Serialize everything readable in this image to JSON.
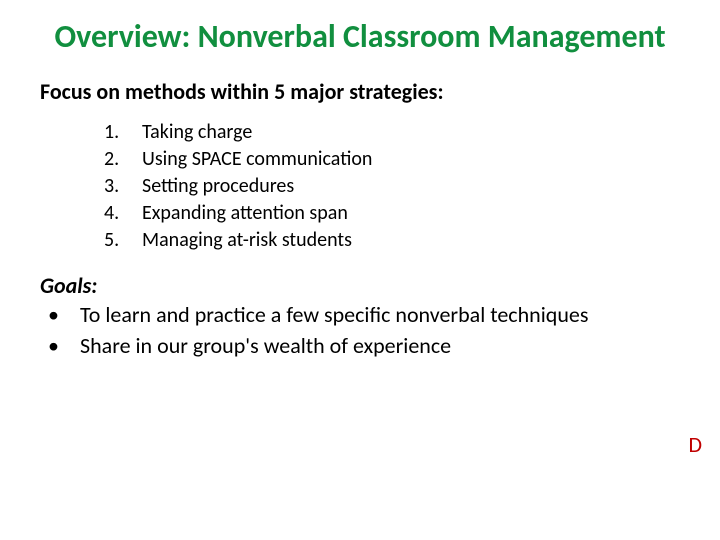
{
  "colors": {
    "title": "#118f3f",
    "body": "#000000",
    "annotation": "#c00000",
    "background": "#ffffff"
  },
  "typography": {
    "title_fontsize": 32,
    "subheading_fontsize": 22,
    "list_fontsize": 20,
    "bullet_fontsize": 22,
    "title_weight": 700,
    "subheading_weight": 700
  },
  "title": "Overview: Nonverbal Classroom Management",
  "subheading": "Focus on methods within 5 major strategies:",
  "strategies": [
    {
      "num": "1.",
      "text": "Taking charge"
    },
    {
      "num": "2.",
      "text": "Using SPACE communication"
    },
    {
      "num": "3.",
      "text": "Setting procedures"
    },
    {
      "num": "4.",
      "text": "Expanding attention span"
    },
    {
      "num": "5.",
      "text": "Managing at-risk students"
    }
  ],
  "goals_heading": "Goals:",
  "goals": [
    {
      "bullet": "•",
      "text": "To learn and practice a few specific nonverbal techniques"
    },
    {
      "bullet": "•",
      "text": " Share in our group's wealth of experience"
    }
  ],
  "annotation": "D"
}
